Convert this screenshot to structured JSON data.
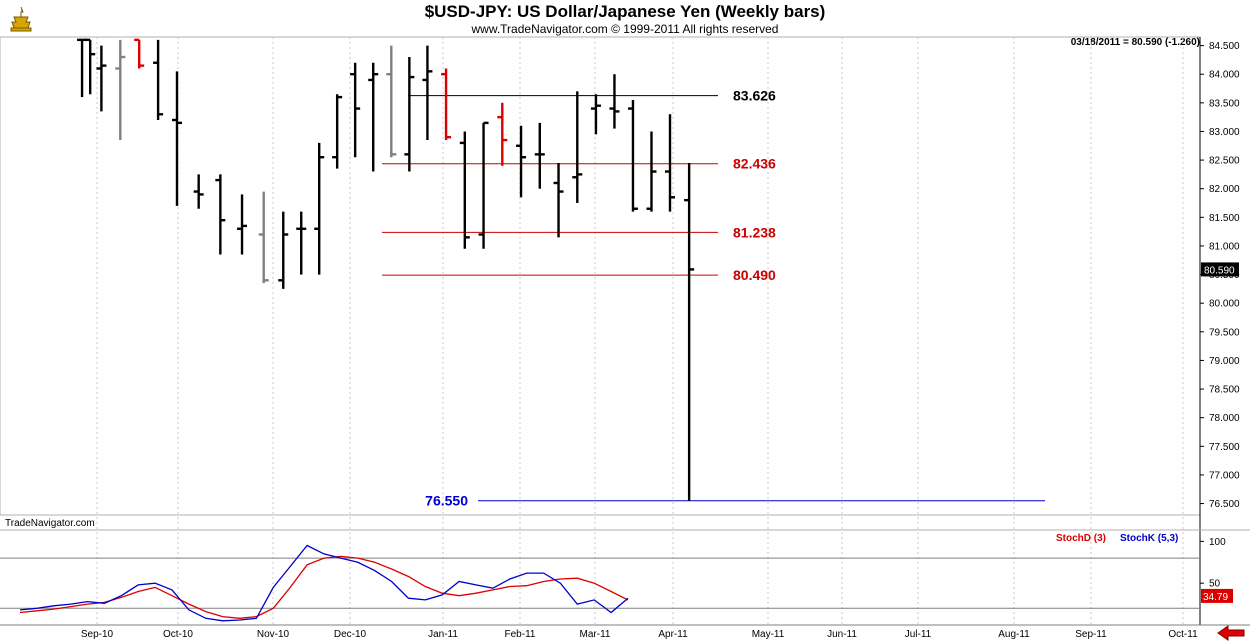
{
  "header": {
    "title": "$USD-JPY:  US Dollar/Japanese Yen  (Weekly bars)",
    "subtitle": "www.TradeNavigator.com © 1999-2011 All rights reserved",
    "quote": "03/18/2011 = 80.590 (-1.260)",
    "watermark": "TradeNavigator.com"
  },
  "colors": {
    "bull": "#000000",
    "neutral": "#808080",
    "bear": "#dd0000",
    "level_red": "#cc0000",
    "level_blue": "#0000cc",
    "stochD": "#dd0000",
    "stochK": "#0000cc"
  },
  "chart_data": [
    {
      "type": "bar",
      "subtype": "ohlc",
      "title": "$USD-JPY:  US Dollar/Japanese Yen  (Weekly bars)",
      "x_axis_labels": [
        "Sep-10",
        "Oct-10",
        "Nov-10",
        "Dec-10",
        "Jan-11",
        "Feb-11",
        "Mar-11",
        "Apr-11",
        "May-11",
        "Jun-11",
        "Jul-11",
        "Aug-11",
        "Sep-11",
        "Oct-11"
      ],
      "y_ticks": [
        "84.500",
        "84.000",
        "83.500",
        "83.000",
        "82.500",
        "82.000",
        "81.500",
        "81.000",
        "80.500",
        "80.000",
        "79.500",
        "79.000",
        "78.500",
        "78.000",
        "77.500",
        "77.000",
        "76.500"
      ],
      "ylim": [
        76.3,
        84.65
      ],
      "current_price": "80.590",
      "bars": [
        {
          "date": "2010-08-20",
          "open": 84.6,
          "high": 84.6,
          "low": 83.6,
          "close": 84.6,
          "color": "bull"
        },
        {
          "date": "2010-08-27",
          "open": 84.6,
          "high": 84.6,
          "low": 83.65,
          "close": 84.35,
          "color": "bull"
        },
        {
          "date": "2010-09-03",
          "open": 84.1,
          "high": 84.5,
          "low": 83.35,
          "close": 84.15,
          "color": "bull"
        },
        {
          "date": "2010-09-10",
          "open": 84.1,
          "high": 84.6,
          "low": 82.85,
          "close": 84.3,
          "color": "neutral"
        },
        {
          "date": "2010-09-17",
          "open": 84.6,
          "high": 84.6,
          "low": 84.1,
          "close": 84.15,
          "color": "bear"
        },
        {
          "date": "2010-09-24",
          "open": 84.2,
          "high": 84.6,
          "low": 83.2,
          "close": 83.3,
          "color": "bull"
        },
        {
          "date": "2010-10-01",
          "open": 83.2,
          "high": 84.05,
          "low": 81.7,
          "close": 83.15,
          "color": "bull"
        },
        {
          "date": "2010-10-08",
          "open": 81.95,
          "high": 82.25,
          "low": 81.65,
          "close": 81.9,
          "color": "bull"
        },
        {
          "date": "2010-10-15",
          "open": 82.15,
          "high": 82.25,
          "low": 80.85,
          "close": 81.45,
          "color": "bull"
        },
        {
          "date": "2010-10-22",
          "open": 81.3,
          "high": 81.9,
          "low": 80.85,
          "close": 81.35,
          "color": "bull"
        },
        {
          "date": "2010-10-29",
          "open": 81.2,
          "high": 81.95,
          "low": 80.35,
          "close": 80.4,
          "color": "neutral"
        },
        {
          "date": "2010-11-05",
          "open": 80.4,
          "high": 81.6,
          "low": 80.25,
          "close": 81.2,
          "color": "bull"
        },
        {
          "date": "2010-11-12",
          "open": 81.3,
          "high": 81.6,
          "low": 80.5,
          "close": 81.3,
          "color": "bull"
        },
        {
          "date": "2010-11-19",
          "open": 81.3,
          "high": 82.8,
          "low": 80.5,
          "close": 82.55,
          "color": "bull"
        },
        {
          "date": "2010-11-26",
          "open": 82.55,
          "high": 83.65,
          "low": 82.35,
          "close": 83.6,
          "color": "bull"
        },
        {
          "date": "2010-12-03",
          "open": 84.0,
          "high": 84.2,
          "low": 82.55,
          "close": 83.4,
          "color": "bull"
        },
        {
          "date": "2010-12-10",
          "open": 83.9,
          "high": 84.2,
          "low": 82.3,
          "close": 84.0,
          "color": "bull"
        },
        {
          "date": "2010-12-17",
          "open": 84.0,
          "high": 84.5,
          "low": 82.55,
          "close": 82.6,
          "color": "neutral"
        },
        {
          "date": "2010-12-24",
          "open": 82.6,
          "high": 84.3,
          "low": 82.3,
          "close": 83.95,
          "color": "bull"
        },
        {
          "date": "2010-12-31",
          "open": 83.9,
          "high": 84.5,
          "low": 82.85,
          "close": 84.05,
          "color": "bull"
        },
        {
          "date": "2011-01-07",
          "open": 84.0,
          "high": 84.1,
          "low": 82.85,
          "close": 82.9,
          "color": "bear"
        },
        {
          "date": "2011-01-14",
          "open": 82.8,
          "high": 83.0,
          "low": 80.95,
          "close": 81.15,
          "color": "bull"
        },
        {
          "date": "2011-01-21",
          "open": 81.2,
          "high": 83.15,
          "low": 80.95,
          "close": 83.15,
          "color": "bull"
        },
        {
          "date": "2011-01-28",
          "open": 83.25,
          "high": 83.5,
          "low": 82.4,
          "close": 82.85,
          "color": "bear"
        },
        {
          "date": "2011-02-04",
          "open": 82.75,
          "high": 83.1,
          "low": 81.85,
          "close": 82.55,
          "color": "bull"
        },
        {
          "date": "2011-02-11",
          "open": 82.6,
          "high": 83.15,
          "low": 82.0,
          "close": 82.6,
          "color": "bull"
        },
        {
          "date": "2011-02-18",
          "open": 82.1,
          "high": 82.45,
          "low": 81.15,
          "close": 81.95,
          "color": "bull"
        },
        {
          "date": "2011-02-25",
          "open": 82.2,
          "high": 83.7,
          "low": 81.75,
          "close": 82.25,
          "color": "bull"
        },
        {
          "date": "2011-03-04",
          "open": 83.4,
          "high": 83.65,
          "low": 82.95,
          "close": 83.45,
          "color": "bull"
        },
        {
          "date": "2011-03-11",
          "open": 83.4,
          "high": 84.0,
          "low": 83.05,
          "close": 83.35,
          "color": "bull"
        },
        {
          "date": "2011-03-18",
          "open": 83.4,
          "high": 83.55,
          "low": 81.6,
          "close": 81.65,
          "color": "bull"
        },
        {
          "date": "2011-03-25",
          "open": 81.65,
          "high": 83.0,
          "low": 81.6,
          "close": 82.3,
          "color": "bull"
        },
        {
          "date": "2011-04-01",
          "open": 82.3,
          "high": 83.3,
          "low": 81.6,
          "close": 81.85,
          "color": "bull"
        },
        {
          "date": "2011-04-08",
          "open": 81.8,
          "high": 82.45,
          "low": 76.55,
          "close": 80.59,
          "color": "bull"
        }
      ],
      "levels": [
        {
          "label": "83.626",
          "value": 83.626,
          "color": "#000000"
        },
        {
          "label": "82.436",
          "value": 82.436,
          "color": "#cc0000"
        },
        {
          "label": "81.238",
          "value": 81.238,
          "color": "#cc0000"
        },
        {
          "label": "80.490",
          "value": 80.49,
          "color": "#cc0000"
        },
        {
          "label": "76.550",
          "value": 76.55,
          "color": "#0000cc"
        }
      ]
    },
    {
      "type": "line",
      "title": "",
      "legend": [
        "StochD (3)",
        "StochK (5,3)"
      ],
      "y_ticks": [
        "100",
        "50"
      ],
      "ylim": [
        0,
        110
      ],
      "reference_lines": [
        80,
        20
      ],
      "last_value": "34.79",
      "series": [
        {
          "name": "StochD (3)",
          "color": "#dd0000",
          "values": [
            15,
            17,
            19,
            22,
            25,
            27,
            33,
            40,
            45,
            35,
            25,
            16,
            10,
            8,
            10,
            20,
            45,
            72,
            80,
            82,
            80,
            75,
            67,
            58,
            46,
            38,
            35,
            38,
            42,
            46,
            47,
            52,
            55,
            56,
            50,
            40,
            30
          ]
        },
        {
          "name": "StochK (5,3)",
          "color": "#0000cc",
          "values": [
            18,
            20,
            23,
            25,
            28,
            26,
            35,
            48,
            50,
            42,
            18,
            8,
            5,
            6,
            8,
            45,
            70,
            95,
            85,
            80,
            75,
            65,
            52,
            32,
            30,
            36,
            52,
            48,
            44,
            55,
            62,
            62,
            50,
            25,
            30,
            15,
            32
          ]
        }
      ]
    }
  ]
}
